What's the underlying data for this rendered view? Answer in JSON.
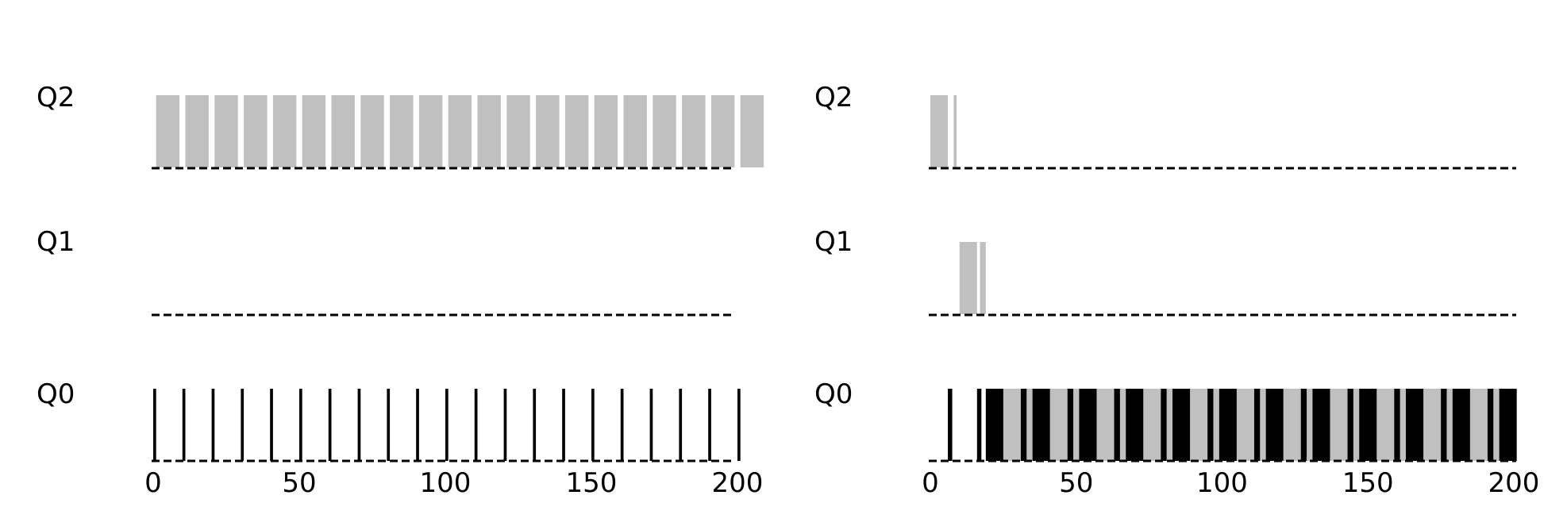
{
  "chart_data": [
    {
      "type": "bar",
      "queues": [
        "Q2",
        "Q1",
        "Q0"
      ],
      "xlim": [
        0,
        200
      ],
      "xticks": [
        "0",
        "50",
        "100",
        "150",
        "200"
      ],
      "colors": {
        "long_job": "#c0c0c0",
        "short_job": "#000000"
      },
      "series": [
        {
          "color_key": "long_job",
          "segments": [
            {
              "queue": "Q2",
              "start": 1,
              "end": 9
            },
            {
              "queue": "Q2",
              "start": 11,
              "end": 19
            },
            {
              "queue": "Q2",
              "start": 21,
              "end": 29
            },
            {
              "queue": "Q2",
              "start": 31,
              "end": 39
            },
            {
              "queue": "Q2",
              "start": 41,
              "end": 49
            },
            {
              "queue": "Q2",
              "start": 51,
              "end": 59
            },
            {
              "queue": "Q2",
              "start": 61,
              "end": 69
            },
            {
              "queue": "Q2",
              "start": 71,
              "end": 79
            },
            {
              "queue": "Q2",
              "start": 81,
              "end": 89
            },
            {
              "queue": "Q2",
              "start": 91,
              "end": 99
            },
            {
              "queue": "Q2",
              "start": 101,
              "end": 109
            },
            {
              "queue": "Q2",
              "start": 111,
              "end": 119
            },
            {
              "queue": "Q2",
              "start": 121,
              "end": 129
            },
            {
              "queue": "Q2",
              "start": 131,
              "end": 139
            },
            {
              "queue": "Q2",
              "start": 141,
              "end": 149
            },
            {
              "queue": "Q2",
              "start": 151,
              "end": 159
            },
            {
              "queue": "Q2",
              "start": 161,
              "end": 169
            },
            {
              "queue": "Q2",
              "start": 171,
              "end": 179
            },
            {
              "queue": "Q2",
              "start": 181,
              "end": 189
            },
            {
              "queue": "Q2",
              "start": 191,
              "end": 199
            },
            {
              "queue": "Q2",
              "start": 201,
              "end": 209
            }
          ]
        },
        {
          "color_key": "short_job",
          "segments": [
            {
              "queue": "Q0",
              "start": 0,
              "end": 1
            },
            {
              "queue": "Q0",
              "start": 10,
              "end": 11
            },
            {
              "queue": "Q0",
              "start": 20,
              "end": 21
            },
            {
              "queue": "Q0",
              "start": 30,
              "end": 31
            },
            {
              "queue": "Q0",
              "start": 40,
              "end": 41
            },
            {
              "queue": "Q0",
              "start": 50,
              "end": 51
            },
            {
              "queue": "Q0",
              "start": 60,
              "end": 61
            },
            {
              "queue": "Q0",
              "start": 70,
              "end": 71
            },
            {
              "queue": "Q0",
              "start": 80,
              "end": 81
            },
            {
              "queue": "Q0",
              "start": 90,
              "end": 91
            },
            {
              "queue": "Q0",
              "start": 100,
              "end": 101
            },
            {
              "queue": "Q0",
              "start": 110,
              "end": 111
            },
            {
              "queue": "Q0",
              "start": 120,
              "end": 121
            },
            {
              "queue": "Q0",
              "start": 130,
              "end": 131
            },
            {
              "queue": "Q0",
              "start": 140,
              "end": 141
            },
            {
              "queue": "Q0",
              "start": 150,
              "end": 151
            },
            {
              "queue": "Q0",
              "start": 160,
              "end": 161
            },
            {
              "queue": "Q0",
              "start": 170,
              "end": 171
            },
            {
              "queue": "Q0",
              "start": 180,
              "end": 181
            },
            {
              "queue": "Q0",
              "start": 190,
              "end": 191
            },
            {
              "queue": "Q0",
              "start": 200,
              "end": 201
            }
          ]
        }
      ]
    },
    {
      "type": "bar",
      "queues": [
        "Q2",
        "Q1",
        "Q0"
      ],
      "xlim": [
        0,
        200
      ],
      "xticks": [
        "0",
        "50",
        "100",
        "150",
        "200"
      ],
      "colors": {
        "long_job": "#c0c0c0",
        "short_job": "#000000"
      },
      "series": [
        {
          "color_key": "long_job",
          "segments": [
            {
              "queue": "Q2",
              "start": 0,
              "end": 6
            },
            {
              "queue": "Q2",
              "start": 8,
              "end": 9
            },
            {
              "queue": "Q1",
              "start": 10,
              "end": 16
            },
            {
              "queue": "Q1",
              "start": 17,
              "end": 19
            },
            {
              "queue": "Q0",
              "start": 25,
              "end": 31
            },
            {
              "queue": "Q0",
              "start": 33,
              "end": 35
            },
            {
              "queue": "Q0",
              "start": 41,
              "end": 47
            },
            {
              "queue": "Q0",
              "start": 49,
              "end": 51
            },
            {
              "queue": "Q0",
              "start": 57,
              "end": 63
            },
            {
              "queue": "Q0",
              "start": 65,
              "end": 67
            },
            {
              "queue": "Q0",
              "start": 73,
              "end": 79
            },
            {
              "queue": "Q0",
              "start": 81,
              "end": 83
            },
            {
              "queue": "Q0",
              "start": 89,
              "end": 95
            },
            {
              "queue": "Q0",
              "start": 97,
              "end": 99
            },
            {
              "queue": "Q0",
              "start": 105,
              "end": 111
            },
            {
              "queue": "Q0",
              "start": 113,
              "end": 115
            },
            {
              "queue": "Q0",
              "start": 121,
              "end": 127
            },
            {
              "queue": "Q0",
              "start": 129,
              "end": 131
            },
            {
              "queue": "Q0",
              "start": 137,
              "end": 143
            },
            {
              "queue": "Q0",
              "start": 145,
              "end": 147
            },
            {
              "queue": "Q0",
              "start": 153,
              "end": 159
            },
            {
              "queue": "Q0",
              "start": 161,
              "end": 163
            },
            {
              "queue": "Q0",
              "start": 169,
              "end": 175
            },
            {
              "queue": "Q0",
              "start": 177,
              "end": 179
            },
            {
              "queue": "Q0",
              "start": 185,
              "end": 191
            },
            {
              "queue": "Q0",
              "start": 193,
              "end": 195
            }
          ]
        },
        {
          "color_key": "short_job",
          "segments": [
            {
              "queue": "Q0",
              "start": 6,
              "end": 7.5
            },
            {
              "queue": "Q0",
              "start": 16,
              "end": 17.5
            },
            {
              "queue": "Q0",
              "start": 19,
              "end": 25
            },
            {
              "queue": "Q0",
              "start": 31,
              "end": 33
            },
            {
              "queue": "Q0",
              "start": 35,
              "end": 41
            },
            {
              "queue": "Q0",
              "start": 47,
              "end": 49
            },
            {
              "queue": "Q0",
              "start": 51,
              "end": 57
            },
            {
              "queue": "Q0",
              "start": 63,
              "end": 65
            },
            {
              "queue": "Q0",
              "start": 67,
              "end": 73
            },
            {
              "queue": "Q0",
              "start": 79,
              "end": 81
            },
            {
              "queue": "Q0",
              "start": 83,
              "end": 89
            },
            {
              "queue": "Q0",
              "start": 95,
              "end": 97
            },
            {
              "queue": "Q0",
              "start": 99,
              "end": 105
            },
            {
              "queue": "Q0",
              "start": 111,
              "end": 113
            },
            {
              "queue": "Q0",
              "start": 115,
              "end": 121
            },
            {
              "queue": "Q0",
              "start": 127,
              "end": 129
            },
            {
              "queue": "Q0",
              "start": 131,
              "end": 137
            },
            {
              "queue": "Q0",
              "start": 143,
              "end": 145
            },
            {
              "queue": "Q0",
              "start": 147,
              "end": 153
            },
            {
              "queue": "Q0",
              "start": 159,
              "end": 161
            },
            {
              "queue": "Q0",
              "start": 163,
              "end": 169
            },
            {
              "queue": "Q0",
              "start": 175,
              "end": 177
            },
            {
              "queue": "Q0",
              "start": 179,
              "end": 185
            },
            {
              "queue": "Q0",
              "start": 191,
              "end": 193
            },
            {
              "queue": "Q0",
              "start": 195,
              "end": 201
            }
          ]
        }
      ]
    }
  ]
}
